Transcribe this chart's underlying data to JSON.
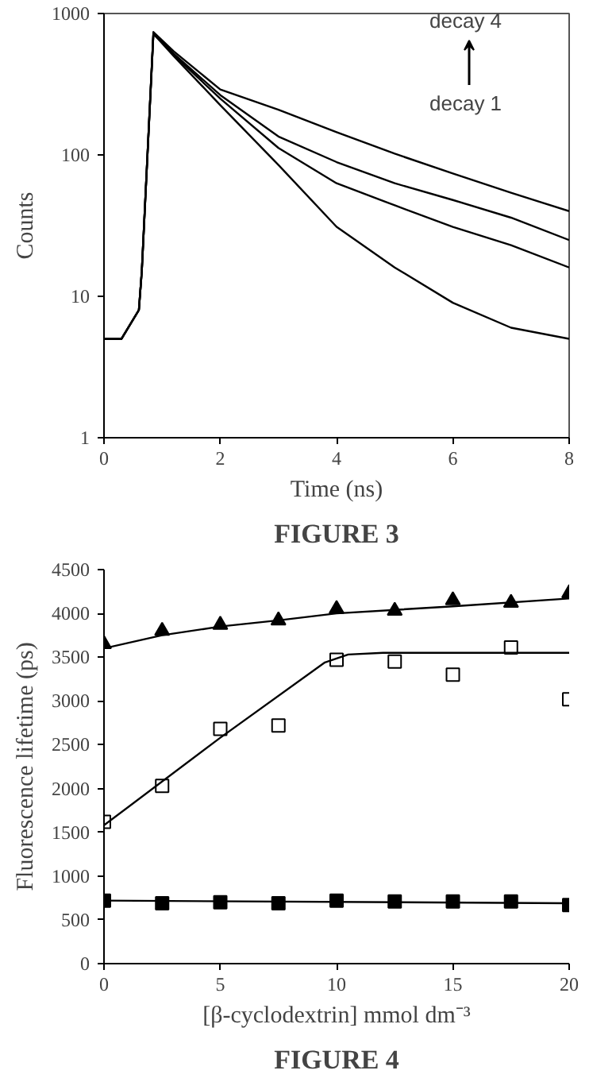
{
  "chart_data": [
    {
      "type": "line",
      "xlabel": "Time (ns)",
      "ylabel": "Counts",
      "log": "y",
      "xlim": [
        0,
        8
      ],
      "xticks": [
        0,
        2,
        4,
        6,
        8
      ],
      "ylim": [
        1,
        1000
      ],
      "yticks": [
        1,
        10,
        100,
        1000
      ],
      "grid": false,
      "annotations": [
        "decay 4",
        "decay 1",
        "FIGURE 3"
      ],
      "x": [
        0,
        0.3,
        0.6,
        0.65,
        0.85,
        1.2,
        2,
        3,
        4,
        5,
        6,
        7,
        8
      ],
      "series": [
        {
          "color": "#000000",
          "values": [
            5,
            5,
            8,
            15,
            720,
            500,
            225,
            85,
            31,
            16,
            9,
            6,
            5
          ]
        },
        {
          "color": "#000000",
          "values": [
            5,
            5,
            8,
            15,
            720,
            510,
            250,
            112,
            63,
            44,
            31,
            23,
            16
          ]
        },
        {
          "color": "#000000",
          "values": [
            5,
            5,
            8,
            15,
            720,
            520,
            265,
            135,
            89,
            63,
            48,
            36,
            25
          ]
        },
        {
          "color": "#000000",
          "values": [
            5,
            5,
            8,
            15,
            740,
            540,
            290,
            209,
            145,
            102,
            74,
            54,
            40
          ]
        }
      ]
    },
    {
      "type": "scatter",
      "xlabel": "[β-cyclodextrin] mmol dm⁻³",
      "ylabel": "Fluorescence lifetime (ps)",
      "xlim": [
        0,
        20
      ],
      "xticks": [
        0,
        5,
        10,
        15,
        20
      ],
      "ylim": [
        0,
        4500
      ],
      "yticks": [
        0,
        500,
        1000,
        1500,
        2000,
        2500,
        3000,
        3500,
        4000,
        4500
      ],
      "grid": false,
      "annotations": [
        "FIGURE 4"
      ],
      "x": [
        0,
        2.5,
        5,
        7.5,
        10,
        12.5,
        15,
        17.5,
        20
      ],
      "series": [
        {
          "color": "#000000",
          "marker": "triangle",
          "values": [
            3650,
            3800,
            3870,
            3920,
            4050,
            4030,
            4150,
            4120,
            4230
          ]
        },
        {
          "color": "#000000",
          "marker": "square_open",
          "values": [
            1620,
            2030,
            2680,
            2720,
            3470,
            3450,
            3300,
            3610,
            3020
          ]
        },
        {
          "color": "#000000",
          "marker": "square",
          "values": [
            720,
            690,
            700,
            690,
            720,
            710,
            710,
            710,
            670
          ]
        },
        {
          "type": "line",
          "color": "#000000",
          "x": [
            0,
            2.5,
            5,
            7.5,
            10,
            15,
            20
          ],
          "values": [
            3600,
            3750,
            3850,
            3920,
            4000,
            4080,
            4170
          ]
        },
        {
          "type": "line",
          "color": "#000000",
          "x": [
            0,
            5,
            9.5,
            10.5,
            12,
            20
          ],
          "values": [
            1580,
            2580,
            3440,
            3530,
            3550,
            3550
          ]
        },
        {
          "type": "line",
          "color": "#000000",
          "x": [
            0,
            20
          ],
          "values": [
            720,
            690
          ]
        }
      ]
    }
  ]
}
